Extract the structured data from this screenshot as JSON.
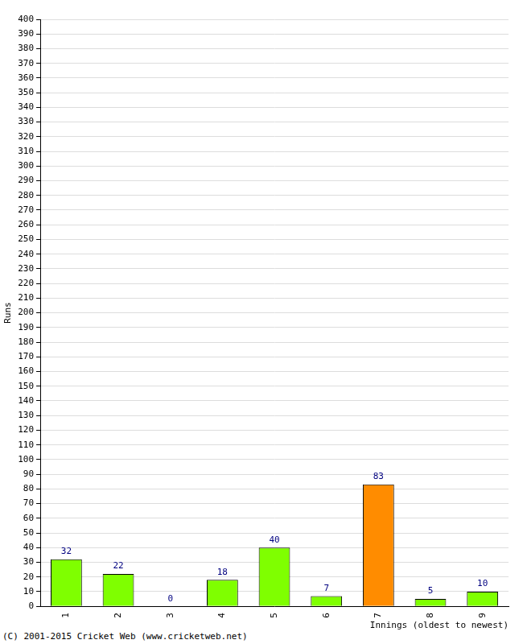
{
  "chart_data": {
    "type": "bar",
    "y_label": "Runs",
    "x_label": "Innings (oldest to newest)",
    "annotations": [
      "(C) 2001-2015 Cricket Web (www.cricketweb.net)"
    ],
    "categories": [
      "1",
      "2",
      "3",
      "4",
      "5",
      "6",
      "7",
      "8",
      "9"
    ],
    "values": [
      32,
      22,
      0,
      18,
      40,
      7,
      83,
      5,
      10
    ],
    "colors": [
      "#7fff00",
      "#7fff00",
      "#7fff00",
      "#7fff00",
      "#7fff00",
      "#7fff00",
      "#ff8c00",
      "#7fff00",
      "#7fff00"
    ],
    "ylim": [
      0,
      400
    ],
    "yticks": [
      0,
      10,
      20,
      30,
      40,
      50,
      60,
      70,
      80,
      90,
      100,
      110,
      120,
      130,
      140,
      150,
      160,
      170,
      180,
      190,
      200,
      210,
      220,
      230,
      240,
      250,
      260,
      270,
      280,
      290,
      300,
      310,
      320,
      330,
      340,
      350,
      360,
      370,
      380,
      390,
      400
    ],
    "grid": true,
    "data_labels": true
  }
}
